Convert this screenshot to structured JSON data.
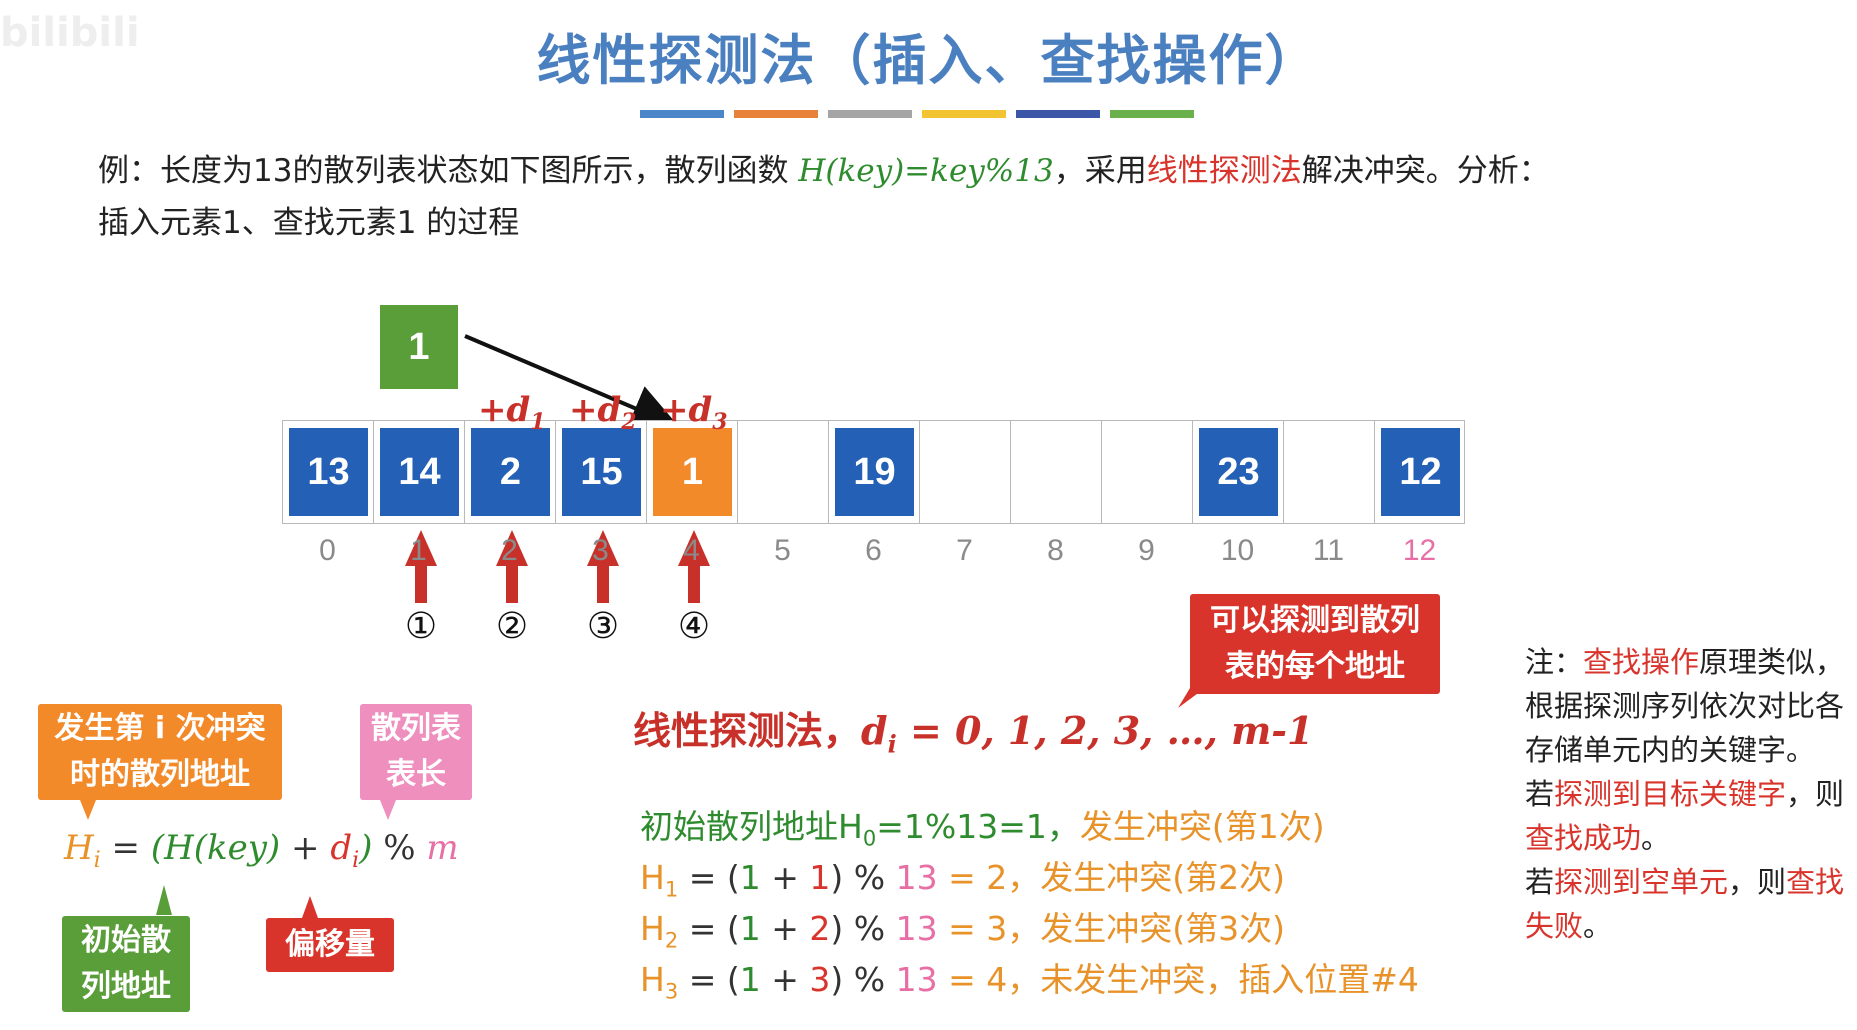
{
  "watermark": "bilibili",
  "title": "线性探测法（插入、查找操作）",
  "title_bars": [
    "#4a86c8",
    "#e8823a",
    "#a5a5a5",
    "#f2c432",
    "#3c57a8",
    "#6ab04c"
  ],
  "intro": {
    "part1": "例：长度为13的散列表状态如下图所示，散列函数 ",
    "func": "H(key)=key%13",
    "part2": "，采用",
    "method": "线性探测法",
    "part3": "解决冲突。分析：",
    "line2": "插入元素1、查找元素1 的过程"
  },
  "new_key": "1",
  "table": {
    "slots": [
      {
        "index": "0",
        "value": "13",
        "style": "blue"
      },
      {
        "index": "1",
        "value": "14",
        "style": "blue"
      },
      {
        "index": "2",
        "value": "2",
        "style": "blue"
      },
      {
        "index": "3",
        "value": "15",
        "style": "blue"
      },
      {
        "index": "4",
        "value": "1",
        "style": "orange"
      },
      {
        "index": "5",
        "value": "",
        "style": "empty"
      },
      {
        "index": "6",
        "value": "19",
        "style": "blue"
      },
      {
        "index": "7",
        "value": "",
        "style": "empty"
      },
      {
        "index": "8",
        "value": "",
        "style": "empty"
      },
      {
        "index": "9",
        "value": "",
        "style": "empty"
      },
      {
        "index": "10",
        "value": "23",
        "style": "blue"
      },
      {
        "index": "11",
        "value": "",
        "style": "empty"
      },
      {
        "index": "12",
        "value": "12",
        "style": "blue"
      }
    ]
  },
  "offset_labels": [
    "+d",
    "+d",
    "+d"
  ],
  "offset_subs": [
    "1",
    "2",
    "3"
  ],
  "probe_marks": [
    "①",
    "②",
    "③",
    "④"
  ],
  "callout_every_address": [
    "可以探测到散列",
    "表的每个地址"
  ],
  "tags": {
    "conflict_addr": [
      "发生第 i 次冲突",
      "时的散列地址"
    ],
    "table_len": [
      "散列表",
      "表长"
    ],
    "initial_addr": [
      "初始散",
      "列地址"
    ],
    "offset": "偏移量"
  },
  "formula": {
    "hi": "H",
    "hi_sub": "i",
    "eq": " = ",
    "open": "(",
    "hkey": "H(key)",
    "plus": " + ",
    "di": "d",
    "di_sub": "i",
    "close": ")",
    "mod": " % ",
    "m": "m"
  },
  "linear_title": {
    "label": "线性探测法，",
    "d": "d",
    "d_sub": "i",
    "rest": " = 0, 1, 2, 3, …, m-1"
  },
  "steps": {
    "s0": {
      "text": "初始散列地址H",
      "sub": "0",
      "calc": "=1%13=1，",
      "note": "发生冲突(第1次)"
    },
    "s1": {
      "h": "H",
      "sub": "1",
      "eq": " = (",
      "a": "1",
      "plus": " + ",
      "b": "1",
      "mod": ") % ",
      "m": "13",
      "res": " = 2，",
      "note": "发生冲突(第2次)"
    },
    "s2": {
      "h": "H",
      "sub": "2",
      "eq": " = (",
      "a": "1",
      "plus": " + ",
      "b": "2",
      "mod": ") % ",
      "m": "13",
      "res": " = 3，",
      "note": "发生冲突(第3次)"
    },
    "s3": {
      "h": "H",
      "sub": "3",
      "eq": " = (",
      "a": "1",
      "plus": " + ",
      "b": "3",
      "mod": ") % ",
      "m": "13",
      "res": " = 4，",
      "note": "未发生冲突，插入位置#4"
    }
  },
  "note": {
    "l1a": "注：",
    "l1b": "查找操作",
    "l1c": "原理类似，根据探测序列依次对比各存储单元内的关键字。",
    "l2a": "若",
    "l2b": "探测到目标关键字",
    "l2c": "，则",
    "l2d": "查找成功",
    "l2e": "。",
    "l3a": "若",
    "l3b": "探测到空单元",
    "l3c": "，则",
    "l3d": "查找失败",
    "l3e": "。"
  }
}
